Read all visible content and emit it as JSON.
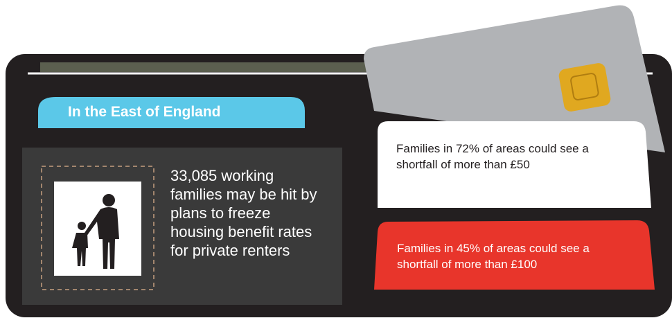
{
  "heading": "In the East of England",
  "main_text": "33,085 working families may be hit by plans to freeze housing benefit rates for private renters",
  "card_white": "Families in 72% of areas could see a shortfall of more than £50",
  "card_red": "Families in 45% of areas could see a shortfall of more than £100"
}
